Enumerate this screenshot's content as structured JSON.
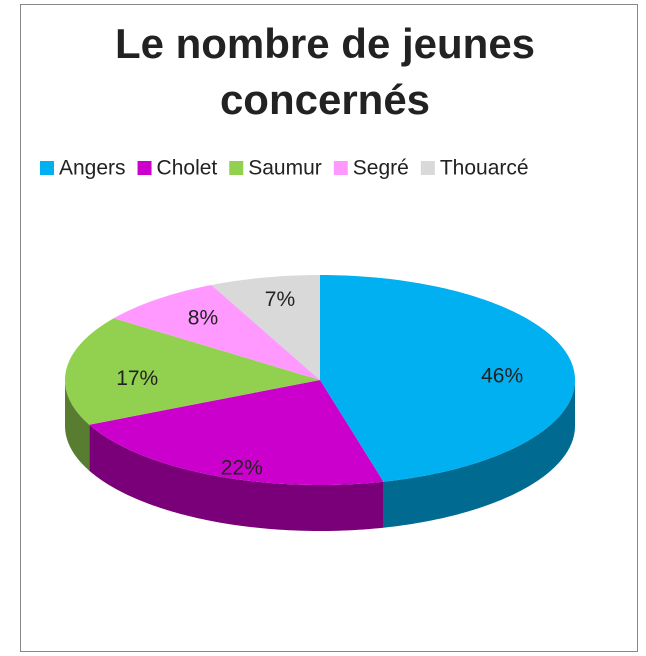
{
  "chart_data": {
    "type": "pie",
    "title": "Le nombre de jeunes concernés",
    "categories": [
      "Angers",
      "Cholet",
      "Saumur",
      "Segré",
      "Thouarcé"
    ],
    "values": [
      46,
      22,
      17,
      8,
      7
    ],
    "value_labels": [
      "46%",
      "22%",
      "17%",
      "8%",
      "7%"
    ],
    "colors": [
      "#00b0f0",
      "#cc00cc",
      "#92d050",
      "#ff99ff",
      "#d9d9d9"
    ],
    "legend": "top"
  }
}
